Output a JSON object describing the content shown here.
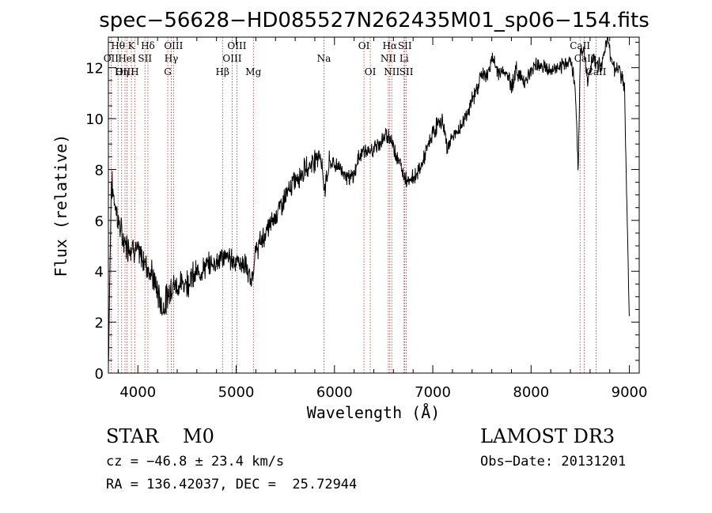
{
  "chart_data": {
    "type": "line",
    "title": "spec−56628−HD085527N262435M01_sp06−154.fits",
    "xlabel": "Wavelength (Å)",
    "ylabel": "Flux (relative)",
    "xlim": [
      3700,
      9100
    ],
    "ylim": [
      0,
      13.2
    ],
    "xticks": [
      4000,
      5000,
      6000,
      7000,
      8000,
      9000
    ],
    "yticks": [
      0,
      2,
      4,
      6,
      8,
      10,
      12
    ],
    "grid": false,
    "legend": "none",
    "line_color": "#000000",
    "marker_color": "#b03030",
    "series": [
      {
        "x": [
          3700,
          3730,
          3760,
          3800,
          3850,
          3900,
          3950,
          4000,
          4050,
          4100,
          4150,
          4200,
          4250,
          4300,
          4350,
          4400,
          4500,
          4600,
          4700,
          4800,
          4900,
          5000,
          5100,
          5150,
          5200,
          5300,
          5400,
          5500,
          5600,
          5700,
          5800,
          5850,
          5900,
          5950,
          6000,
          6050,
          6100,
          6150,
          6200,
          6250,
          6300,
          6350,
          6400,
          6450,
          6500,
          6550,
          6600,
          6650,
          6700,
          6750,
          6800,
          6850,
          6900,
          6950,
          7000,
          7050,
          7100,
          7150,
          7200,
          7250,
          7300,
          7350,
          7400,
          7450,
          7500,
          7550,
          7600,
          7650,
          7700,
          7750,
          7800,
          7850,
          7900,
          7950,
          8000,
          8050,
          8100,
          8150,
          8200,
          8250,
          8300,
          8350,
          8400,
          8450,
          8480,
          8500,
          8540,
          8580,
          8620,
          8660,
          8700,
          8750,
          8780,
          8800,
          8850,
          8900,
          8950,
          9000
        ],
        "y": [
          0.3,
          7.5,
          6.8,
          6.0,
          5.2,
          5.0,
          5.0,
          4.7,
          4.5,
          4.2,
          3.8,
          3.2,
          2.5,
          3.0,
          3.5,
          3.4,
          3.6,
          3.9,
          4.2,
          4.4,
          4.6,
          4.4,
          4.2,
          3.5,
          4.8,
          5.5,
          6.2,
          6.9,
          7.6,
          8.0,
          8.4,
          8.7,
          7.2,
          8.3,
          8.2,
          8.1,
          7.9,
          7.6,
          7.8,
          8.5,
          8.8,
          8.6,
          8.8,
          9.0,
          9.2,
          9.4,
          8.9,
          8.4,
          7.8,
          7.6,
          7.7,
          7.9,
          8.3,
          8.9,
          9.4,
          9.8,
          9.9,
          8.8,
          9.3,
          9.4,
          9.8,
          10.2,
          10.7,
          11.2,
          11.8,
          11.6,
          12.4,
          11.9,
          11.8,
          11.8,
          11.3,
          11.9,
          11.6,
          11.5,
          11.8,
          12.2,
          12.1,
          12.0,
          11.8,
          12.0,
          11.9,
          12.2,
          12.3,
          11.2,
          8.0,
          12.6,
          12.7,
          11.4,
          12.4,
          12.2,
          12.1,
          12.5,
          13.3,
          12.6,
          12.0,
          11.9,
          11.2,
          2.0
        ]
      }
    ],
    "lines": [
      {
        "label": "Hθ",
        "wl": 3798,
        "row": 1
      },
      {
        "label": "K",
        "wl": 3934,
        "row": 1
      },
      {
        "label": "Hδ",
        "wl": 4102,
        "row": 1
      },
      {
        "label": "OIII",
        "wl": 4363,
        "row": 1
      },
      {
        "label": "OIII",
        "wl": 5007,
        "row": 1
      },
      {
        "label": "OI",
        "wl": 6300,
        "row": 1
      },
      {
        "label": "Hα",
        "wl": 6563,
        "row": 1
      },
      {
        "label": "SII",
        "wl": 6716,
        "row": 1
      },
      {
        "label": "CaII",
        "wl": 8498,
        "row": 1
      },
      {
        "label": "OII",
        "wl": 3727,
        "row": 2
      },
      {
        "label": "HeI",
        "wl": 3889,
        "row": 2
      },
      {
        "label": "SII",
        "wl": 4072,
        "row": 2
      },
      {
        "label": "Hγ",
        "wl": 4340,
        "row": 2
      },
      {
        "label": "OIII",
        "wl": 4959,
        "row": 2
      },
      {
        "label": "Na",
        "wl": 5893,
        "row": 2
      },
      {
        "label": "NII",
        "wl": 6548,
        "row": 2
      },
      {
        "label": "Li",
        "wl": 6708,
        "row": 2
      },
      {
        "label": "CaII",
        "wl": 8542,
        "row": 2
      },
      {
        "label": "OIII",
        "wl": 3869,
        "row": 3
      },
      {
        "label": "Hη",
        "wl": 3835,
        "row": 3
      },
      {
        "label": "H",
        "wl": 3968,
        "row": 3
      },
      {
        "label": "G",
        "wl": 4304,
        "row": 3
      },
      {
        "label": "Hβ",
        "wl": 4861,
        "row": 3
      },
      {
        "label": "Mg",
        "wl": 5175,
        "row": 3
      },
      {
        "label": "OI",
        "wl": 6364,
        "row": 3
      },
      {
        "label": "NII",
        "wl": 6583,
        "row": 3
      },
      {
        "label": "SII",
        "wl": 6731,
        "row": 3
      },
      {
        "label": "CaII",
        "wl": 8662,
        "row": 3
      }
    ]
  },
  "info": {
    "class": "STAR    M0",
    "survey": "LAMOST DR3",
    "cz": "cz = −46.8 ± 23.4 km/s",
    "obs_date": "Obs−Date: 20131201",
    "radec": "RA = 136.42037, DEC =  25.72944"
  }
}
